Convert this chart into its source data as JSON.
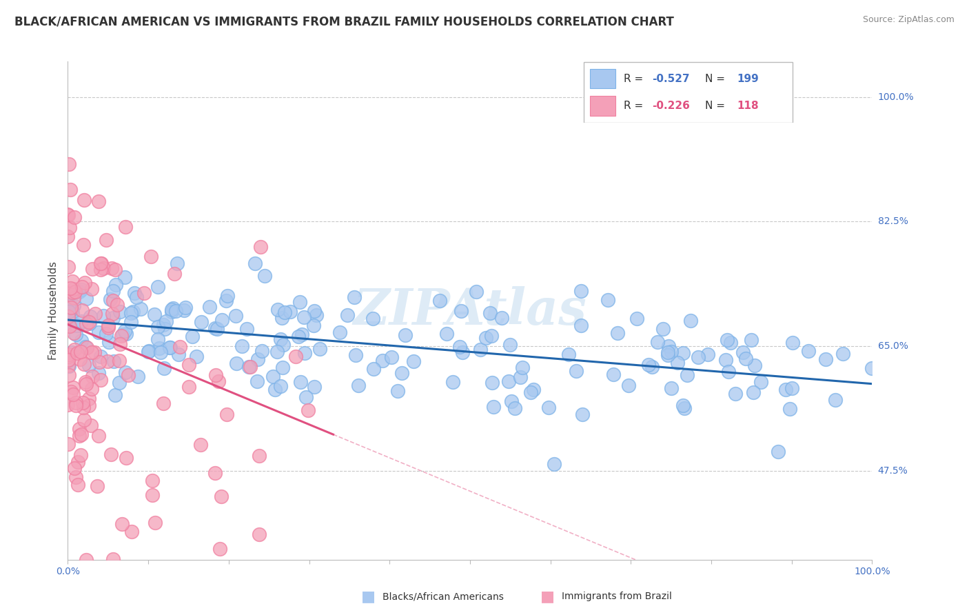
{
  "title": "BLACK/AFRICAN AMERICAN VS IMMIGRANTS FROM BRAZIL FAMILY HOUSEHOLDS CORRELATION CHART",
  "source": "Source: ZipAtlas.com",
  "ylabel": "Family Households",
  "blue_R": -0.527,
  "blue_N": 199,
  "pink_R": -0.226,
  "pink_N": 118,
  "blue_color": "#A8C8F0",
  "pink_color": "#F4A0B8",
  "blue_edge_color": "#7EB3E8",
  "pink_edge_color": "#F080A0",
  "blue_line_color": "#2166AC",
  "pink_line_color": "#E05080",
  "watermark_color": "#D8E8F0",
  "label_color": "#4472C4",
  "title_color": "#333333",
  "xlim": [
    0.0,
    1.0
  ],
  "ylim": [
    0.35,
    1.05
  ],
  "yticks": [
    0.475,
    0.65,
    0.825,
    1.0
  ],
  "ytick_labels": [
    "47.5%",
    "65.0%",
    "82.5%",
    "100.0%"
  ],
  "blue_seed": 42,
  "pink_seed": 7,
  "title_fontsize": 12,
  "tick_fontsize": 10,
  "ylabel_fontsize": 11
}
